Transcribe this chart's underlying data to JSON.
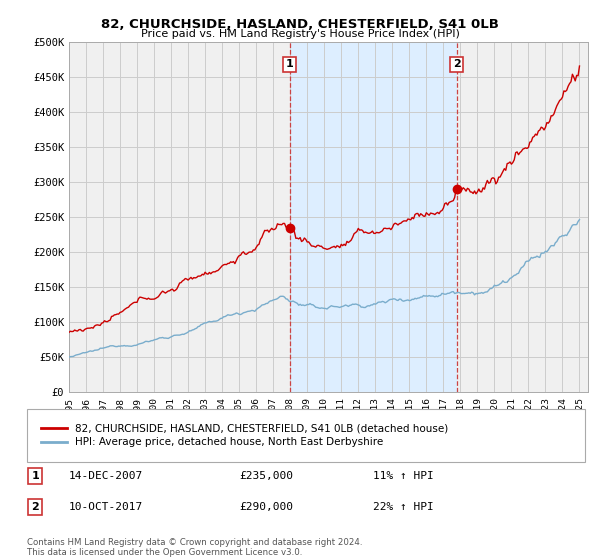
{
  "title": "82, CHURCHSIDE, HASLAND, CHESTERFIELD, S41 0LB",
  "subtitle": "Price paid vs. HM Land Registry's House Price Index (HPI)",
  "ylabel_ticks": [
    "£0",
    "£50K",
    "£100K",
    "£150K",
    "£200K",
    "£250K",
    "£300K",
    "£350K",
    "£400K",
    "£450K",
    "£500K"
  ],
  "ytick_values": [
    0,
    50000,
    100000,
    150000,
    200000,
    250000,
    300000,
    350000,
    400000,
    450000,
    500000
  ],
  "ylim": [
    0,
    500000
  ],
  "xlim_start": 1995,
  "xlim_end": 2025.5,
  "sale1": {
    "date_num": 2007.96,
    "price": 235000,
    "label": "1",
    "annotation": "14-DEC-2007",
    "price_str": "£235,000",
    "hpi_str": "11% ↑ HPI"
  },
  "sale2": {
    "date_num": 2017.79,
    "price": 290000,
    "label": "2",
    "annotation": "10-OCT-2017",
    "price_str": "£290,000",
    "hpi_str": "22% ↑ HPI"
  },
  "legend_line1": "82, CHURCHSIDE, HASLAND, CHESTERFIELD, S41 0LB (detached house)",
  "legend_line2": "HPI: Average price, detached house, North East Derbyshire",
  "footer": "Contains HM Land Registry data © Crown copyright and database right 2024.\nThis data is licensed under the Open Government Licence v3.0.",
  "line_color_red": "#cc0000",
  "line_color_blue": "#7aadcc",
  "vline_color": "#cc4444",
  "shade_color": "#ddeeff",
  "grid_color": "#cccccc",
  "background_color": "#ffffff",
  "plot_bg_color": "#f0f0f0"
}
